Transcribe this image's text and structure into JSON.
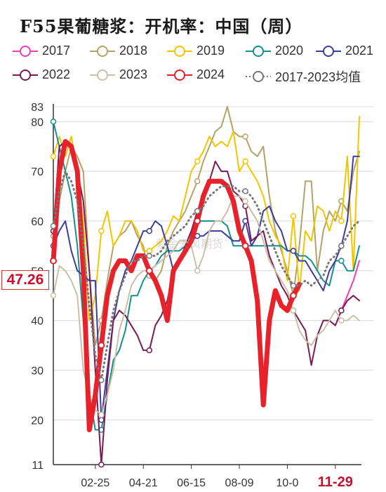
{
  "title": "F55果葡糖浆：开机率：中国（周）",
  "watermark": "紫金天风期货",
  "callout": {
    "label": "47.26",
    "value": 47.26
  },
  "chart_data": {
    "type": "line",
    "title": "F55果葡糖浆：开机率：中国（周）",
    "xlabel": "",
    "ylabel": "",
    "ylim": [
      11,
      83
    ],
    "y_ticks": [
      11,
      20,
      30,
      40,
      50,
      60,
      70,
      80,
      83
    ],
    "x_tick_labels": [
      "02-25",
      "04-21",
      "06-15",
      "08-09",
      "10-0",
      "11-29"
    ],
    "x_tick_weeks": [
      8,
      16,
      24,
      32,
      40,
      48
    ],
    "highlight_tick_label": "11-29",
    "legend_position": "top",
    "grid": "horizontal",
    "series": [
      {
        "name": "2017",
        "color": "#ee3fb0",
        "values": [
          null,
          null,
          null,
          null,
          null,
          null,
          null,
          null,
          null,
          null,
          null,
          null,
          null,
          null,
          null,
          null,
          null,
          null,
          null,
          null,
          null,
          null,
          null,
          null,
          null,
          null,
          null,
          null,
          null,
          null,
          null,
          null,
          null,
          null,
          null,
          null,
          null,
          null,
          null,
          null,
          null,
          null,
          null,
          null,
          null,
          null,
          null,
          null,
          42,
          45,
          48,
          52
        ]
      },
      {
        "name": "2018",
        "color": "#b5a268",
        "values": [
          57,
          64,
          70,
          75,
          73,
          70,
          50,
          35,
          40,
          48,
          55,
          57,
          58,
          60,
          57,
          55,
          49,
          48,
          50,
          55,
          58,
          60,
          62,
          65,
          68,
          72,
          75,
          78,
          79,
          83,
          78,
          77,
          77,
          74,
          73,
          75,
          65,
          58,
          54,
          50,
          45,
          55,
          68,
          68,
          50,
          58,
          62,
          60,
          64,
          62,
          70,
          74
        ]
      },
      {
        "name": "2019",
        "color": "#f5c400",
        "values": [
          73,
          77,
          73,
          77,
          70,
          60,
          40,
          45,
          58,
          62,
          55,
          57,
          60,
          60,
          58,
          54,
          54,
          55,
          56,
          58,
          61,
          60,
          65,
          70,
          72,
          74,
          77,
          75,
          76,
          75,
          78,
          70,
          72,
          70,
          68,
          65,
          60,
          57,
          55,
          48,
          61,
          46,
          58,
          56,
          63,
          62,
          58,
          62,
          60,
          73,
          50,
          81
        ]
      },
      {
        "name": "2020",
        "color": "#14918f",
        "values": [
          80,
          75,
          70,
          65,
          55,
          40,
          25,
          18,
          18,
          25,
          32,
          34,
          38,
          45,
          45,
          48,
          50,
          51,
          53,
          54,
          54,
          54,
          55,
          58,
          60,
          60,
          60,
          60,
          60,
          59,
          55,
          55,
          55,
          55,
          55,
          55,
          55,
          55,
          55,
          54,
          54,
          53,
          53,
          52,
          50,
          48,
          47,
          52,
          52,
          50,
          50,
          55
        ]
      },
      {
        "name": "2021",
        "color": "#3c3d9e",
        "values": [
          55,
          58,
          60,
          54,
          50,
          49,
          48,
          48,
          20,
          30,
          40,
          46,
          50,
          52,
          55,
          58,
          58,
          60,
          59,
          55,
          50,
          52,
          55,
          56,
          57,
          57,
          58,
          58,
          58,
          57,
          56,
          56,
          60,
          55,
          57,
          62,
          63,
          60,
          58,
          54,
          54,
          52,
          52,
          50,
          48,
          46,
          50,
          52,
          55,
          60,
          73,
          73
        ]
      },
      {
        "name": "2022",
        "color": "#7a1a55",
        "values": [
          58,
          75,
          76,
          75,
          70,
          64,
          50,
          30,
          11,
          28,
          40,
          42,
          41,
          39,
          37,
          34,
          34,
          39,
          41,
          44,
          50,
          52,
          55,
          58,
          62,
          65,
          68,
          72,
          70,
          70,
          66,
          65,
          63,
          56,
          57,
          58,
          53,
          50,
          47,
          45,
          42,
          40,
          38,
          31,
          37,
          40,
          40,
          39,
          42,
          44,
          45,
          44
        ]
      },
      {
        "name": "2023",
        "color": "#cbbfa8",
        "values": [
          45,
          51,
          50,
          48,
          45,
          30,
          25,
          22,
          21,
          25,
          30,
          38,
          42,
          47,
          49,
          50,
          50,
          51,
          52,
          53,
          54,
          56,
          56,
          55,
          50,
          53,
          58,
          60,
          60,
          62,
          65,
          65,
          64,
          62,
          60,
          56,
          52,
          50,
          48,
          46,
          42,
          38,
          36,
          35,
          37,
          38,
          40,
          42,
          40,
          40,
          41,
          40
        ]
      },
      {
        "name": "2024",
        "color": "#e8222a",
        "values": [
          52,
          70,
          76,
          75,
          70,
          50,
          18,
          25,
          35,
          45,
          50,
          52,
          52,
          50,
          53,
          53,
          50,
          48,
          45,
          40,
          50,
          52,
          54,
          56,
          60,
          65,
          68,
          68,
          68,
          67,
          64,
          58,
          55,
          52,
          44,
          23,
          40,
          46,
          43,
          42,
          45,
          47.26
        ]
      },
      {
        "name": "2017-2023均值",
        "color": "#777777",
        "values": [
          59,
          66,
          70,
          68,
          64,
          55,
          43,
          33,
          28,
          35,
          42,
          46,
          49,
          52,
          52,
          53,
          53,
          53,
          54,
          56,
          57,
          58,
          59,
          61,
          62,
          63,
          65,
          66,
          67,
          67,
          67,
          66,
          66,
          65,
          63,
          60,
          57,
          54,
          51,
          49,
          47,
          47,
          48,
          47,
          48,
          49,
          52,
          53,
          55,
          57,
          59,
          60
        ]
      }
    ]
  }
}
